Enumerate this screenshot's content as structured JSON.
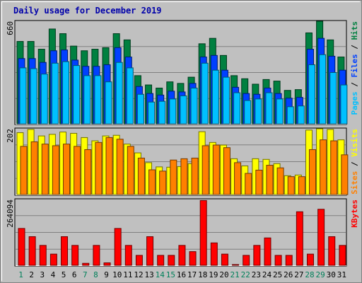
{
  "chart_data": {
    "type": "bar",
    "title": "Daily usage for December 2019",
    "days": [
      "1",
      "2",
      "3",
      "4",
      "5",
      "6",
      "7",
      "8",
      "9",
      "10",
      "11",
      "12",
      "13",
      "14",
      "15",
      "16",
      "17",
      "18",
      "19",
      "20",
      "21",
      "22",
      "23",
      "24",
      "25",
      "26",
      "27",
      "28",
      "29",
      "30",
      "31"
    ],
    "weekend_days": [
      "1",
      "7",
      "8",
      "14",
      "15",
      "21",
      "22",
      "28",
      "29"
    ],
    "panels": [
      {
        "key": "hits_files_pages",
        "y_max_label": "660",
        "y_max": 660,
        "grid": true,
        "legend": [
          {
            "text": "Pages",
            "color": "#00c0ff"
          },
          {
            "text": " / ",
            "color": "#000000"
          },
          {
            "text": "Files",
            "color": "#0040ff"
          },
          {
            "text": " / ",
            "color": "#000000"
          },
          {
            "text": "Hits",
            "color": "#008040"
          }
        ],
        "series": [
          {
            "name": "Hits",
            "color": "#008040",
            "values": [
              530,
              530,
              480,
              610,
              580,
              500,
              470,
              480,
              490,
              580,
              540,
              310,
              250,
              230,
              270,
              260,
              300,
              515,
              550,
              440,
              310,
              290,
              255,
              285,
              275,
              215,
              220,
              585,
              670,
              540,
              430
            ]
          },
          {
            "name": "Files",
            "color": "#0040ff",
            "values": [
              420,
              420,
              395,
              470,
              475,
              410,
              370,
              370,
              380,
              490,
              430,
              240,
              195,
              185,
              210,
              205,
              260,
              430,
              440,
              345,
              235,
              195,
              190,
              230,
              195,
              165,
              170,
              480,
              550,
              435,
              345
            ]
          },
          {
            "name": "Pages",
            "color": "#00c0ff",
            "values": [
              360,
              355,
              320,
              390,
              400,
              375,
              310,
              310,
              270,
              395,
              360,
              190,
              140,
              145,
              160,
              180,
              230,
              390,
              345,
              300,
              200,
              150,
              160,
              200,
              160,
              110,
              115,
              380,
              445,
              330,
              250
            ]
          }
        ]
      },
      {
        "key": "visits_sites",
        "y_max_label": "202",
        "y_max": 202,
        "grid": true,
        "legend": [
          {
            "text": "Sites",
            "color": "#ff8000"
          },
          {
            "text": " / ",
            "color": "#000000"
          },
          {
            "text": "Visits",
            "color": "#ffff00"
          }
        ],
        "series": [
          {
            "name": "Visits",
            "color": "#ffff00",
            "values": [
              190,
              200,
              180,
              185,
              192,
              188,
              175,
              165,
              180,
              182,
              155,
              128,
              98,
              85,
              84,
              86,
              95,
              193,
              160,
              152,
              110,
              88,
              110,
              108,
              95,
              58,
              60,
              198,
              210,
              200,
              168
            ]
          },
          {
            "name": "Sites",
            "color": "#ff8000",
            "values": [
              148,
              162,
              155,
              150,
              155,
              148,
              138,
              160,
              175,
              170,
              148,
              112,
              76,
              72,
              106,
              110,
              112,
              150,
              152,
              144,
              98,
              65,
              75,
              90,
              82,
              55,
              55,
              138,
              168,
              165,
              122
            ]
          }
        ]
      },
      {
        "key": "kbytes",
        "y_max_label": "264094",
        "y_max": 264094,
        "grid": true,
        "legend": [
          {
            "text": "KBytes",
            "color": "#ff0000"
          }
        ],
        "series": [
          {
            "name": "KBytes",
            "color": "#ff0000",
            "values": [
              148000,
              115000,
              80000,
              45000,
              115000,
              80000,
              8000,
              80000,
              10000,
              148000,
              80000,
              40000,
              115000,
              40000,
              40000,
              80000,
              55000,
              260000,
              90000,
              45000,
              3000,
              40000,
              80000,
              110000,
              40000,
              40000,
              215000,
              45000,
              225000,
              115000,
              80000
            ]
          }
        ]
      }
    ],
    "xlabel": "",
    "ylabel": "",
    "legend_position": "right"
  }
}
